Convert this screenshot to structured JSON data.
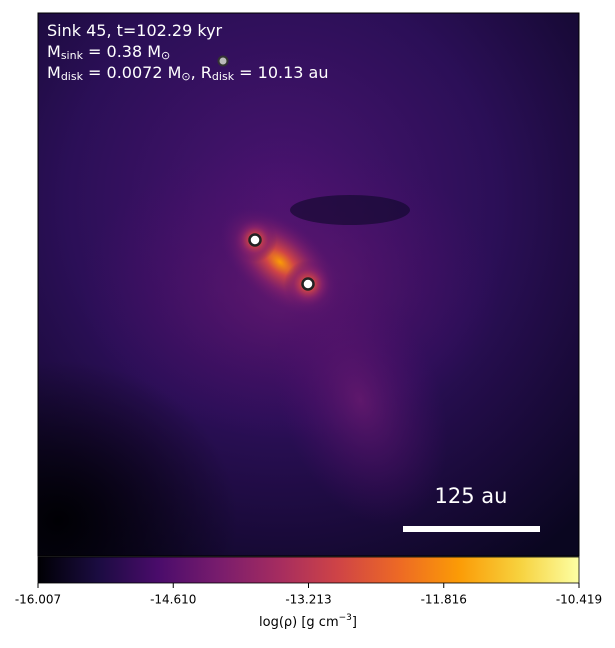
{
  "chart_data": {
    "type": "density-map",
    "annotation_lines": [
      [
        "Sink 45, t=102.29 kyr"
      ],
      [
        "M",
        "sink",
        " = 0.38 M",
        "⊙"
      ],
      [
        "M",
        "disk",
        " = 0.0072 M",
        "⊙",
        ", R",
        "disk",
        " = 10.13 au"
      ]
    ],
    "scale_bar_label": "125 au",
    "clim": [
      -16.007,
      -10.419
    ],
    "cticks": [
      -16.007,
      -14.61,
      -13.213,
      -11.816,
      -10.419
    ],
    "colorbar_label": [
      "log(ρ) [g cm",
      "−3",
      "]"
    ],
    "colormap": [
      "#000004",
      "#1b0c41",
      "#4a0c6b",
      "#781c6d",
      "#a52c60",
      "#cf4446",
      "#ed6925",
      "#fb9b06",
      "#f7d13d",
      "#fcffa4"
    ]
  }
}
